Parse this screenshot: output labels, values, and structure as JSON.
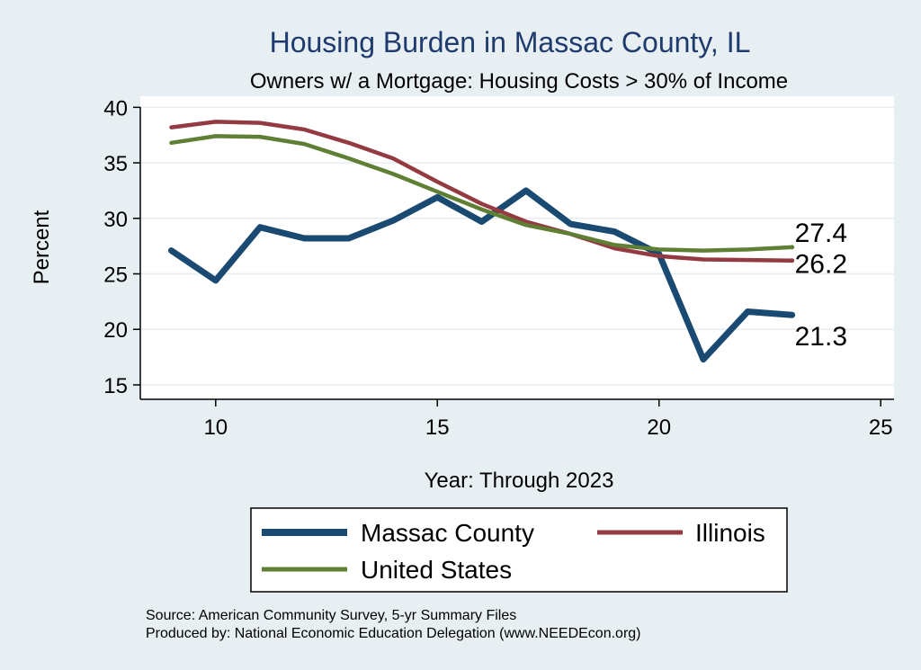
{
  "chart_data": {
    "type": "line",
    "title": "Housing Burden in Massac County, IL",
    "subtitle": "Owners w/ a Mortgage: Housing Costs > 30% of Income",
    "xlabel": "Year: Through 2023",
    "ylabel": "Percent",
    "x": [
      9,
      10,
      11,
      12,
      13,
      14,
      15,
      16,
      17,
      18,
      19,
      20,
      21,
      22,
      23
    ],
    "xlim": [
      8.3,
      25.3
    ],
    "ylim": [
      13.7,
      41.0
    ],
    "x_ticks": [
      10,
      15,
      20,
      25
    ],
    "y_ticks": [
      15,
      20,
      25,
      30,
      35,
      40
    ],
    "series": [
      {
        "name": "Massac County",
        "color": "#1a4a72",
        "values": [
          27.1,
          24.4,
          29.2,
          28.2,
          28.2,
          29.8,
          31.9,
          29.7,
          32.5,
          29.5,
          28.8,
          26.8,
          17.3,
          21.6,
          21.3
        ],
        "end_label": "21.3"
      },
      {
        "name": "Illinois",
        "color": "#943a41",
        "values": [
          38.2,
          38.7,
          38.6,
          38.0,
          36.8,
          35.4,
          33.3,
          31.3,
          29.7,
          28.6,
          27.3,
          26.6,
          26.3,
          26.25,
          26.2
        ],
        "end_label": "26.2"
      },
      {
        "name": "United States",
        "color": "#5f7f35",
        "values": [
          36.8,
          37.4,
          37.35,
          36.7,
          35.4,
          34.0,
          32.4,
          30.8,
          29.4,
          28.6,
          27.6,
          27.2,
          27.1,
          27.2,
          27.4
        ],
        "end_label": "27.4"
      }
    ],
    "legend": [
      "Massac County",
      "Illinois",
      "United States"
    ]
  },
  "source": {
    "line1": "Source: American Community Survey, 5-yr Summary Files",
    "line2": "Produced by: National Economic Education Delegation (www.NEEDEcon.org)"
  }
}
